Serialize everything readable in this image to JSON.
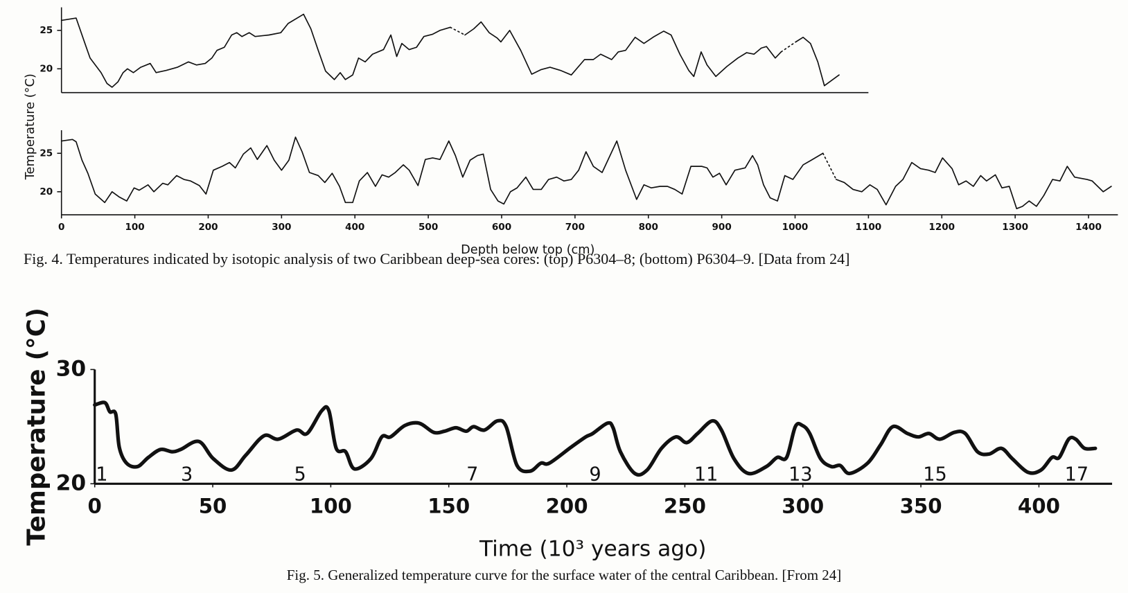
{
  "chart_data": [
    {
      "type": "line",
      "ylabel": "Temperature (°C)",
      "caption": "Fig. 4. Temperatures indicated by isotopic analysis of two Caribbean deep-sea cores: (top) P6304–8; (bottom) P6304–9. [Data from 24]",
      "xlim": [
        0,
        1100
      ],
      "ylim": [
        16.9,
        28
      ],
      "yticks": [
        20,
        25
      ],
      "grid": false,
      "series": [
        {
          "color": "#111111",
          "dashed": false,
          "x": [
            0,
            20,
            32,
            39,
            54,
            62,
            69,
            77,
            84,
            90,
            98,
            108,
            121,
            129,
            143,
            158,
            173,
            184,
            196,
            205,
            212,
            222,
            232,
            239,
            246,
            256,
            264,
            283,
            299,
            309,
            330,
            340,
            350,
            360,
            372,
            380,
            387,
            397,
            405,
            414,
            424,
            439,
            449,
            457,
            464,
            474,
            484,
            494,
            506,
            516,
            530,
            null,
            550,
            562,
            572,
            583,
            594,
            599,
            611,
            626,
            641,
            654,
            666,
            680,
            695,
            713,
            725,
            735,
            750,
            759,
            769,
            782,
            794,
            808,
            821,
            831,
            843,
            855,
            862,
            872,
            880,
            892,
            907,
            922,
            934,
            944,
            954,
            961,
            973,
            981,
            null,
            1001,
            1011,
            1021,
            1031,
            1040,
            1060
          ],
          "values": [
            26.3,
            26.6,
            23.3,
            21.4,
            19.5,
            18.1,
            17.6,
            18.3,
            19.5,
            20.0,
            19.5,
            20.2,
            20.7,
            19.5,
            19.8,
            20.2,
            20.9,
            20.5,
            20.7,
            21.4,
            22.4,
            22.8,
            24.4,
            24.7,
            24.2,
            24.7,
            24.2,
            24.4,
            24.7,
            25.9,
            27.1,
            25.2,
            22.4,
            19.7,
            18.6,
            19.5,
            18.6,
            19.2,
            21.4,
            20.9,
            21.9,
            22.5,
            24.4,
            21.6,
            23.3,
            22.5,
            22.8,
            24.2,
            24.5,
            25.0,
            25.4,
            null,
            24.4,
            25.2,
            26.1,
            24.7,
            24.0,
            23.5,
            25.0,
            22.4,
            19.3,
            19.9,
            20.2,
            19.8,
            19.2,
            21.2,
            21.2,
            21.9,
            21.2,
            22.2,
            22.4,
            24.1,
            23.3,
            24.2,
            24.9,
            24.4,
            21.9,
            19.8,
            19.0,
            22.2,
            20.5,
            19.0,
            20.3,
            21.4,
            22.1,
            21.9,
            22.7,
            22.9,
            21.4,
            22.2,
            null,
            23.5,
            24.1,
            23.3,
            20.9,
            17.8,
            19.2
          ]
        },
        {
          "color": "#111111",
          "dashed": true,
          "x": [
            530,
            550,
            null,
            981,
            1001
          ],
          "values": [
            25.4,
            24.4,
            null,
            22.2,
            23.5
          ]
        }
      ]
    },
    {
      "type": "line",
      "xlabel": "Depth below top (cm)",
      "xlim": [
        0,
        1440
      ],
      "ylim": [
        17,
        28
      ],
      "yticks": [
        20,
        25
      ],
      "xticks": [
        0,
        100,
        200,
        300,
        400,
        500,
        600,
        700,
        800,
        900,
        1000,
        1100,
        1200,
        1300,
        1400
      ],
      "grid": false,
      "series": [
        {
          "color": "#111111",
          "dashed": false,
          "x": [
            0,
            15,
            20,
            28,
            36,
            46,
            59,
            69,
            79,
            89,
            99,
            106,
            118,
            126,
            138,
            145,
            157,
            167,
            176,
            188,
            197,
            207,
            219,
            229,
            237,
            248,
            258,
            267,
            280,
            290,
            300,
            310,
            319,
            328,
            338,
            350,
            359,
            369,
            379,
            387,
            397,
            406,
            417,
            428,
            437,
            446,
            455,
            466,
            474,
            486,
            496,
            506,
            516,
            528,
            537,
            547,
            557,
            567,
            575,
            585,
            595,
            603,
            612,
            621,
            633,
            643,
            654,
            664,
            675,
            685,
            695,
            705,
            715,
            725,
            737,
            757,
            769,
            784,
            794,
            804,
            816,
            826,
            836,
            846,
            858,
            873,
            880,
            888,
            897,
            906,
            918,
            932,
            942,
            949,
            957,
            966,
            976,
            986,
            997,
            1011,
            1022,
            1038,
            null,
            1056,
            1067,
            1079,
            1091,
            1102,
            1112,
            1124,
            1137,
            1147,
            1159,
            1171,
            1182,
            1191,
            1201,
            1214,
            1223,
            1233,
            1243,
            1253,
            1261,
            1273,
            1282,
            1292,
            1302,
            1310,
            1319,
            1329,
            1339,
            1351,
            1361,
            1371,
            1381,
            1398,
            1405,
            1420,
            1431
          ],
          "values": [
            26.6,
            26.8,
            26.5,
            24.1,
            22.4,
            19.7,
            18.6,
            20.0,
            19.3,
            18.8,
            20.5,
            20.2,
            20.9,
            20.0,
            21.1,
            20.9,
            22.1,
            21.6,
            21.4,
            20.8,
            19.7,
            22.8,
            23.3,
            23.8,
            23.1,
            24.9,
            25.7,
            24.2,
            26.0,
            24.1,
            22.8,
            24.1,
            27.1,
            25.2,
            22.5,
            22.1,
            21.2,
            22.4,
            20.7,
            18.6,
            18.6,
            21.4,
            22.5,
            20.7,
            22.2,
            21.9,
            22.5,
            23.5,
            22.8,
            20.8,
            24.2,
            24.4,
            24.2,
            26.6,
            24.7,
            21.9,
            24.1,
            24.7,
            24.9,
            20.3,
            18.8,
            18.4,
            20.0,
            20.5,
            21.9,
            20.3,
            20.3,
            21.6,
            21.9,
            21.4,
            21.6,
            22.8,
            25.2,
            23.3,
            22.5,
            26.6,
            22.8,
            19.0,
            20.9,
            20.5,
            20.7,
            20.7,
            20.3,
            19.7,
            23.3,
            23.3,
            23.1,
            21.9,
            22.4,
            20.9,
            22.8,
            23.1,
            24.7,
            23.5,
            20.9,
            19.2,
            18.8,
            22.1,
            21.6,
            23.5,
            24.1,
            25.0,
            null,
            21.6,
            21.2,
            20.3,
            20.0,
            20.9,
            20.3,
            18.3,
            20.7,
            21.6,
            23.8,
            23.0,
            22.8,
            22.5,
            24.4,
            23.0,
            20.9,
            21.4,
            20.7,
            22.1,
            21.4,
            22.2,
            20.5,
            20.7,
            17.8,
            18.1,
            18.8,
            18.1,
            19.5,
            21.6,
            21.4,
            23.3,
            21.9,
            21.6,
            21.4,
            20.0,
            20.7
          ]
        },
        {
          "color": "#111111",
          "dashed": true,
          "x": [
            1038,
            1056
          ],
          "values": [
            25.0,
            21.6
          ]
        }
      ]
    },
    {
      "type": "line",
      "xlabel": "Time (10³ years ago)",
      "ylabel": "Temperature (°C)",
      "caption": "Fig. 5. Generalized temperature curve for the surface water of the central Caribbean. [From 24]",
      "xlim": [
        0,
        431
      ],
      "ylim": [
        20,
        30
      ],
      "yticks": [
        20,
        30
      ],
      "xticks": [
        0,
        50,
        100,
        150,
        200,
        250,
        300,
        350,
        400
      ],
      "grid": false,
      "smooth": true,
      "annotations": [
        {
          "text": "1",
          "x": 3
        },
        {
          "text": "3",
          "x": 39
        },
        {
          "text": "5",
          "x": 87
        },
        {
          "text": "7",
          "x": 160
        },
        {
          "text": "9",
          "x": 212
        },
        {
          "text": "11",
          "x": 259
        },
        {
          "text": "13",
          "x": 299
        },
        {
          "text": "15",
          "x": 356
        },
        {
          "text": "17",
          "x": 416
        }
      ],
      "series": [
        {
          "color": "#111111",
          "dashed": false,
          "x": [
            0,
            4.3,
            6.4,
            8.9,
            10.4,
            13.5,
            18.1,
            22.7,
            27.9,
            32.8,
            36.4,
            44.1,
            50.2,
            57.9,
            64,
            71.7,
            77.8,
            85.5,
            90,
            96.2,
            99.2,
            102.3,
            106.3,
            110,
            117,
            121.6,
            125.3,
            131.4,
            137.5,
            143.6,
            148.2,
            153,
            157.4,
            160.5,
            165.1,
            170.6,
            174.3,
            178.9,
            184.4,
            189,
            192.6,
            201.8,
            208,
            211,
            217.2,
            219.6,
            222.7,
            228.8,
            234,
            240.1,
            246.2,
            250.8,
            255.4,
            261.6,
            265.5,
            270.8,
            276.9,
            284.5,
            289.1,
            293.1,
            296.8,
            299.8,
            302.9,
            307.5,
            312.1,
            315.8,
            319.8,
            327.4,
            332.9,
            338.1,
            344.3,
            348.9,
            353.4,
            358,
            364.2,
            368.8,
            374,
            378.9,
            384.1,
            388.7,
            395.4,
            400.9,
            405.5,
            408.6,
            412.6,
            415.6,
            419.3,
            423.9
          ],
          "values": [
            26.9,
            27.1,
            26.3,
            26.1,
            23.2,
            21.8,
            21.5,
            22.3,
            23.0,
            22.8,
            23.0,
            23.7,
            22.2,
            21.2,
            22.5,
            24.2,
            23.9,
            24.7,
            24.4,
            26.4,
            26.4,
            23.1,
            22.8,
            21.3,
            22.2,
            24.1,
            24.1,
            25.1,
            25.3,
            24.5,
            24.6,
            24.9,
            24.6,
            25.0,
            24.7,
            25.5,
            25.0,
            21.6,
            21.1,
            21.8,
            21.8,
            23.2,
            24.1,
            24.4,
            25.3,
            24.9,
            22.8,
            20.9,
            21.2,
            23.1,
            24.1,
            23.6,
            24.4,
            25.5,
            24.7,
            22.2,
            20.9,
            21.5,
            22.3,
            22.3,
            25.0,
            25.1,
            24.4,
            22.2,
            21.5,
            21.6,
            20.9,
            21.8,
            23.4,
            25.0,
            24.4,
            24.1,
            24.4,
            23.9,
            24.5,
            24.4,
            22.8,
            22.6,
            23.1,
            22.2,
            21.0,
            21.2,
            22.3,
            22.3,
            23.9,
            23.9,
            23.1,
            23.1
          ]
        }
      ]
    }
  ]
}
